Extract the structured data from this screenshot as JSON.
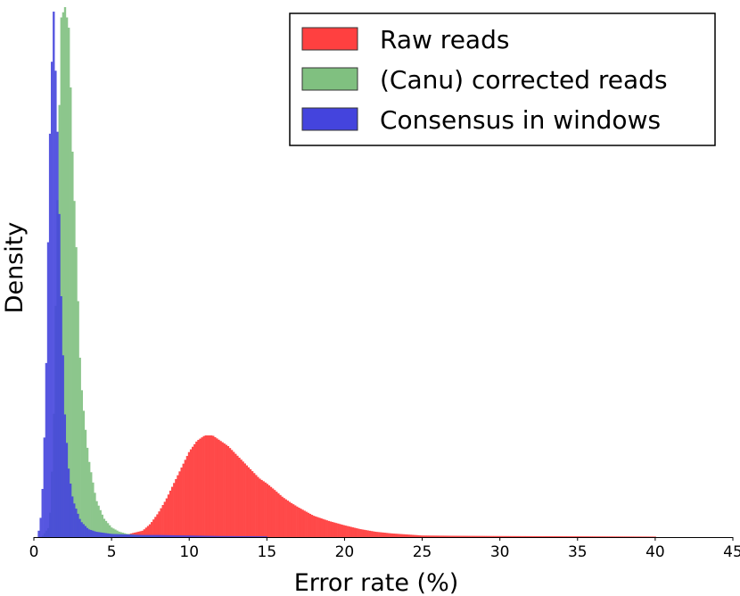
{
  "chart_data": {
    "type": "histogram",
    "title": "",
    "xlabel": "Error rate (%)",
    "ylabel": "Density",
    "xlim": [
      0,
      45
    ],
    "ylim": [
      0,
      1
    ],
    "xticks": [
      0,
      5,
      10,
      15,
      20,
      25,
      30,
      35,
      40,
      45
    ],
    "y_ticks_shown": false,
    "grid": false,
    "legend_position": "top-right",
    "series": [
      {
        "name": "Raw reads",
        "color": "#ff4040",
        "values": [
          {
            "x": 5.0,
            "y": 0.0
          },
          {
            "x": 6.0,
            "y": 0.005
          },
          {
            "x": 7.0,
            "y": 0.012
          },
          {
            "x": 7.5,
            "y": 0.025
          },
          {
            "x": 8.0,
            "y": 0.045
          },
          {
            "x": 8.5,
            "y": 0.07
          },
          {
            "x": 9.0,
            "y": 0.1
          },
          {
            "x": 9.5,
            "y": 0.13
          },
          {
            "x": 10.0,
            "y": 0.16
          },
          {
            "x": 10.5,
            "y": 0.18
          },
          {
            "x": 11.0,
            "y": 0.19
          },
          {
            "x": 11.5,
            "y": 0.19
          },
          {
            "x": 12.0,
            "y": 0.18
          },
          {
            "x": 12.5,
            "y": 0.17
          },
          {
            "x": 13.0,
            "y": 0.155
          },
          {
            "x": 13.5,
            "y": 0.14
          },
          {
            "x": 14.0,
            "y": 0.125
          },
          {
            "x": 14.5,
            "y": 0.11
          },
          {
            "x": 15.0,
            "y": 0.1
          },
          {
            "x": 15.5,
            "y": 0.088
          },
          {
            "x": 16.0,
            "y": 0.075
          },
          {
            "x": 16.5,
            "y": 0.065
          },
          {
            "x": 17.0,
            "y": 0.056
          },
          {
            "x": 17.5,
            "y": 0.048
          },
          {
            "x": 18.0,
            "y": 0.04
          },
          {
            "x": 19.0,
            "y": 0.03
          },
          {
            "x": 20.0,
            "y": 0.022
          },
          {
            "x": 21.0,
            "y": 0.015
          },
          {
            "x": 22.0,
            "y": 0.01
          },
          {
            "x": 23.0,
            "y": 0.007
          },
          {
            "x": 24.0,
            "y": 0.005
          },
          {
            "x": 25.0,
            "y": 0.003
          },
          {
            "x": 27.0,
            "y": 0.0025
          },
          {
            "x": 30.0,
            "y": 0.002
          },
          {
            "x": 35.0,
            "y": 0.0015
          },
          {
            "x": 40.0,
            "y": 0.001
          }
        ]
      },
      {
        "name": "(Canu) corrected reads",
        "color": "#80c080",
        "values": [
          {
            "x": 0.5,
            "y": 0.0
          },
          {
            "x": 1.0,
            "y": 0.02
          },
          {
            "x": 1.25,
            "y": 0.18
          },
          {
            "x": 1.5,
            "y": 0.6
          },
          {
            "x": 1.75,
            "y": 0.97
          },
          {
            "x": 2.0,
            "y": 0.99
          },
          {
            "x": 2.25,
            "y": 0.95
          },
          {
            "x": 2.5,
            "y": 0.7
          },
          {
            "x": 2.75,
            "y": 0.52
          },
          {
            "x": 3.0,
            "y": 0.3
          },
          {
            "x": 3.25,
            "y": 0.22
          },
          {
            "x": 3.5,
            "y": 0.15
          },
          {
            "x": 4.0,
            "y": 0.07
          },
          {
            "x": 4.5,
            "y": 0.035
          },
          {
            "x": 5.0,
            "y": 0.018
          },
          {
            "x": 5.5,
            "y": 0.01
          },
          {
            "x": 6.0,
            "y": 0.006
          },
          {
            "x": 7.0,
            "y": 0.003
          },
          {
            "x": 8.0,
            "y": 0.002
          }
        ]
      },
      {
        "name": "Consensus in windows",
        "color": "#4444dd",
        "values": [
          {
            "x": 0.25,
            "y": 0.0
          },
          {
            "x": 0.5,
            "y": 0.05
          },
          {
            "x": 0.75,
            "y": 0.25
          },
          {
            "x": 1.0,
            "y": 0.72
          },
          {
            "x": 1.25,
            "y": 1.0
          },
          {
            "x": 1.5,
            "y": 0.77
          },
          {
            "x": 1.75,
            "y": 0.45
          },
          {
            "x": 2.0,
            "y": 0.22
          },
          {
            "x": 2.25,
            "y": 0.12
          },
          {
            "x": 2.5,
            "y": 0.07
          },
          {
            "x": 3.0,
            "y": 0.03
          },
          {
            "x": 3.5,
            "y": 0.015
          },
          {
            "x": 4.0,
            "y": 0.01
          },
          {
            "x": 5.0,
            "y": 0.006
          },
          {
            "x": 6.0,
            "y": 0.005
          },
          {
            "x": 7.0,
            "y": 0.004
          },
          {
            "x": 8.0,
            "y": 0.004
          },
          {
            "x": 10.0,
            "y": 0.003
          },
          {
            "x": 12.0,
            "y": 0.002
          },
          {
            "x": 15.0,
            "y": 0.0015
          }
        ]
      }
    ]
  }
}
